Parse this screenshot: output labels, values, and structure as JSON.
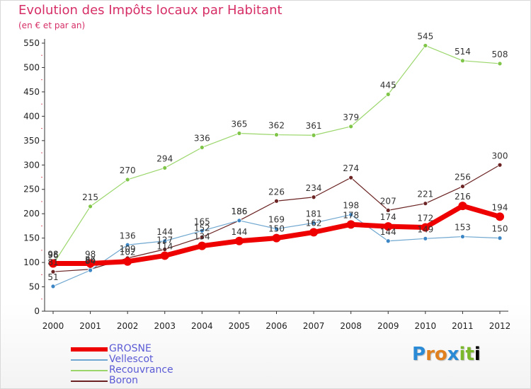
{
  "chart_data": {
    "type": "line",
    "title": "Evolution des Impôts locaux par Habitant",
    "subtitle": "(en € et par an)",
    "x": [
      "2000",
      "2001",
      "2002",
      "2003",
      "2004",
      "2005",
      "2006",
      "2007",
      "2008",
      "2009",
      "2010",
      "2011",
      "2012"
    ],
    "ylim": [
      0,
      550
    ],
    "yticks": [
      0,
      50,
      100,
      150,
      200,
      250,
      300,
      350,
      400,
      450,
      500,
      550
    ],
    "grid": false,
    "legend_position": "bottom-left",
    "series": [
      {
        "name": "Recouvrance",
        "color": "#9ad66a",
        "marker": "#7fc548",
        "width": 1.2,
        "values": [
          96,
          215,
          270,
          294,
          336,
          365,
          362,
          361,
          379,
          445,
          545,
          514,
          508
        ]
      },
      {
        "name": "Boron",
        "color": "#6b2323",
        "marker": "#6b2323",
        "width": 1.2,
        "values": [
          81,
          86,
          109,
          127,
          152,
          186,
          226,
          234,
          274,
          207,
          221,
          256,
          300
        ]
      },
      {
        "name": "Vellescot",
        "color": "#6fa7d0",
        "marker": "#3c86c6",
        "width": 1.2,
        "values": [
          51,
          84,
          136,
          144,
          165,
          186,
          169,
          181,
          198,
          144,
          149,
          153,
          150
        ]
      },
      {
        "name": "GROSNE",
        "color": "#ee0000",
        "marker": "#ee0000",
        "width": 7,
        "values": [
          98,
          98,
          102,
          114,
          134,
          144,
          150,
          162,
          178,
          174,
          172,
          216,
          194
        ]
      }
    ]
  },
  "legend": [
    "GROSNE",
    "Vellescot",
    "Recouvrance",
    "Boron"
  ],
  "logo": {
    "letters": [
      "P",
      "r",
      "o",
      "x",
      "i",
      "t",
      "i"
    ]
  }
}
